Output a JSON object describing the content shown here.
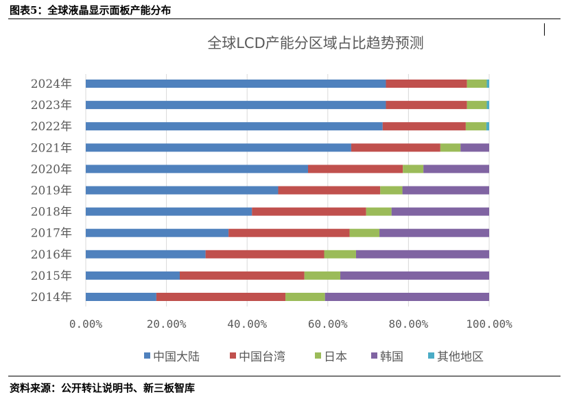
{
  "header": "图表5：全球液晶显示面板产能分布",
  "footer": "资料来源：公开转让说明书、新三板智库",
  "chart_data": {
    "type": "bar",
    "orientation": "horizontal",
    "stacked": "percent",
    "title": "全球LCD产能分区域占比趋势预测",
    "categories": [
      "2014年",
      "2015年",
      "2016年",
      "2017年",
      "2018年",
      "2019年",
      "2020年",
      "2021年",
      "2022年",
      "2023年",
      "2024年"
    ],
    "xlim": [
      0,
      100
    ],
    "xticks": [
      "0.00%",
      "20.00%",
      "40.00%",
      "60.00%",
      "80.00%",
      "100.00%"
    ],
    "grid": true,
    "legend": "bottom",
    "series": [
      {
        "name": "中国大陆",
        "color": "#4f81bd",
        "values": [
          17.5,
          23.3,
          29.7,
          35.4,
          41.2,
          47.7,
          55.1,
          65.8,
          73.6,
          74.4,
          74.4
        ]
      },
      {
        "name": "中国台湾",
        "color": "#c0504d",
        "values": [
          32.0,
          30.9,
          29.4,
          30.0,
          28.3,
          25.3,
          23.5,
          22.1,
          20.6,
          20.1,
          20.1
        ]
      },
      {
        "name": "日本",
        "color": "#9bbb59",
        "values": [
          9.8,
          8.9,
          7.9,
          7.4,
          6.3,
          5.5,
          5.1,
          5.0,
          5.1,
          4.9,
          4.9
        ]
      },
      {
        "name": "韩国",
        "color": "#8064a2",
        "values": [
          40.7,
          36.9,
          33.0,
          27.2,
          24.2,
          21.5,
          16.3,
          7.1,
          0,
          0,
          0
        ]
      },
      {
        "name": "其他地区",
        "color": "#4bacc6",
        "values": [
          0,
          0,
          0,
          0,
          0,
          0,
          0,
          0,
          0.7,
          0.6,
          0.6
        ]
      }
    ]
  }
}
